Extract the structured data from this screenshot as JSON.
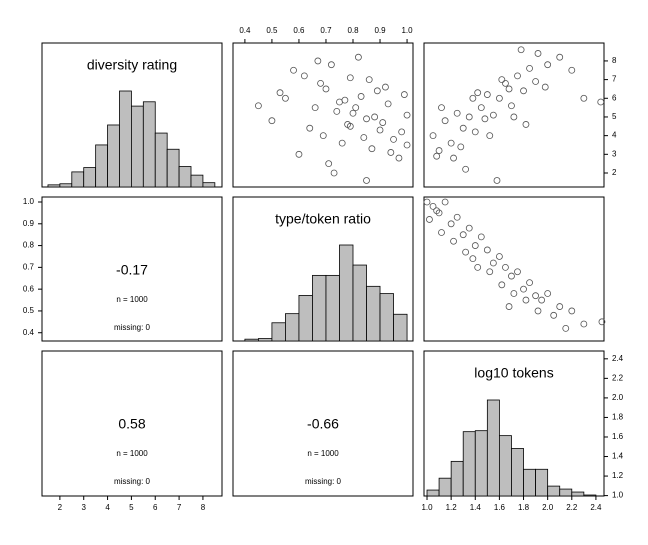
{
  "chart_data": {
    "type": "pairs",
    "variables": [
      {
        "name": "diversity rating",
        "xlim": [
          1.25,
          8.8
        ],
        "ylim": [
          1.25,
          8.96
        ],
        "ticks": [
          2,
          3,
          4,
          5,
          6,
          7,
          8
        ]
      },
      {
        "name": "type/token ratio",
        "xlim": [
          0.356,
          1.022
        ],
        "ylim": [
          0.362,
          1.023
        ],
        "ticks": [
          0.4,
          0.5,
          0.6,
          0.7,
          0.8,
          0.9,
          {
            "value": 1,
            "label": "1.0"
          }
        ]
      },
      {
        "name": "log10 tokens",
        "xlim": [
          0.975,
          2.467
        ],
        "ylim": [
          0.996,
          2.48
        ],
        "ticks": [
          {
            "value": 1,
            "label": "1.0"
          },
          1.2,
          1.4,
          1.6,
          1.8,
          {
            "value": 2,
            "label": "2.0"
          },
          2.2,
          2.4
        ]
      }
    ],
    "histograms": [
      {
        "bins": [
          1.5,
          2,
          2.5,
          3,
          3.5,
          4,
          4.5,
          5,
          5.5,
          6,
          6.5,
          7,
          7.5,
          8,
          8.5
        ],
        "counts": [
          4,
          6,
          28,
          36,
          78,
          115,
          178,
          150,
          158,
          100,
          70,
          38,
          22,
          8
        ]
      },
      {
        "bins": [
          0.4,
          0.45,
          0.5,
          0.55,
          0.6,
          0.65,
          0.7,
          0.75,
          0.8,
          0.85,
          0.9,
          0.95,
          1.0
        ],
        "counts": [
          3,
          4,
          30,
          45,
          75,
          108,
          108,
          158,
          125,
          90,
          78,
          44
        ]
      },
      {
        "bins": [
          1.0,
          1.1,
          1.2,
          1.3,
          1.4,
          1.5,
          1.6,
          1.7,
          1.8,
          1.9,
          2.0,
          2.1,
          2.2,
          2.3,
          2.4
        ],
        "counts": [
          12,
          36,
          70,
          130,
          132,
          194,
          122,
          96,
          54,
          54,
          20,
          14,
          8,
          2
        ]
      }
    ],
    "scatters": [
      {
        "x": [
          0.62,
          0.7,
          0.75,
          0.8,
          0.85,
          0.9,
          0.95,
          1.0,
          0.55,
          0.66,
          0.72,
          0.78,
          0.83,
          0.88,
          0.93,
          0.98,
          0.5,
          0.6,
          0.68,
          0.74,
          0.79,
          0.84,
          0.89,
          0.97,
          0.64,
          0.71,
          0.77,
          0.82,
          0.87,
          0.92,
          1.0,
          0.58,
          0.69,
          0.76,
          0.81,
          0.86,
          0.91,
          0.99,
          0.45,
          0.53,
          0.73,
          0.79,
          0.94,
          0.67,
          0.85
        ],
        "y": [
          7.2,
          6.5,
          5.8,
          5.2,
          4.9,
          4.3,
          3.8,
          3.5,
          6.0,
          5.5,
          7.8,
          4.6,
          6.1,
          5.0,
          5.7,
          4.2,
          4.8,
          3.0,
          6.8,
          5.3,
          7.1,
          3.9,
          6.4,
          2.8,
          4.4,
          2.5,
          5.9,
          8.2,
          3.3,
          6.6,
          5.1,
          7.5,
          4.0,
          3.6,
          5.5,
          7.0,
          4.7,
          6.2,
          5.6,
          6.3,
          2.0,
          4.5,
          3.1,
          8.0,
          1.6
        ]
      },
      {
        "x": [
          1.05,
          1.1,
          1.15,
          1.2,
          1.25,
          1.3,
          1.35,
          1.4,
          1.45,
          1.5,
          1.55,
          1.6,
          1.65,
          1.7,
          1.75,
          1.8,
          1.85,
          1.9,
          2.0,
          2.1,
          1.12,
          1.22,
          1.32,
          1.42,
          1.52,
          1.62,
          1.72,
          1.82,
          1.92,
          2.2,
          1.08,
          1.28,
          1.38,
          1.48,
          1.58,
          1.68,
          1.78,
          1.98,
          2.3,
          2.44
        ],
        "y": [
          4.0,
          3.2,
          4.8,
          3.6,
          5.2,
          4.4,
          5.0,
          4.2,
          5.5,
          6.2,
          5.1,
          6.0,
          6.8,
          5.6,
          7.2,
          6.4,
          7.6,
          6.9,
          7.8,
          8.2,
          5.5,
          2.8,
          2.2,
          6.3,
          4.0,
          7.0,
          5.0,
          4.6,
          8.4,
          7.5,
          2.9,
          3.4,
          6.0,
          4.9,
          1.6,
          6.5,
          8.6,
          6.6,
          6.0,
          5.8
        ]
      },
      {
        "x": [
          1.0,
          1.05,
          1.1,
          1.15,
          1.2,
          1.25,
          1.3,
          1.35,
          1.4,
          1.45,
          1.5,
          1.55,
          1.6,
          1.65,
          1.7,
          1.75,
          1.8,
          1.85,
          1.9,
          1.95,
          2.0,
          2.1,
          2.2,
          2.3,
          2.45,
          1.02,
          1.12,
          1.22,
          1.32,
          1.42,
          1.52,
          1.62,
          1.72,
          1.82,
          1.92,
          2.05,
          2.15,
          1.08,
          1.38,
          1.68
        ],
        "y": [
          1.0,
          0.98,
          0.95,
          1.0,
          0.9,
          0.93,
          0.85,
          0.88,
          0.8,
          0.84,
          0.78,
          0.72,
          0.75,
          0.7,
          0.66,
          0.68,
          0.6,
          0.63,
          0.57,
          0.55,
          0.58,
          0.52,
          0.5,
          0.44,
          0.45,
          0.92,
          0.86,
          0.82,
          0.77,
          0.7,
          0.68,
          0.62,
          0.58,
          0.55,
          0.5,
          0.48,
          0.42,
          0.96,
          0.74,
          0.52
        ]
      }
    ],
    "correlations": [
      {
        "r": -0.17,
        "n": "n = 1000",
        "missing": "missing: 0"
      },
      {
        "r": 0.58,
        "n": "n = 1000",
        "missing": "missing: 0"
      },
      {
        "r": -0.66,
        "n": "n = 1000",
        "missing": "missing: 0"
      }
    ],
    "bar_color": "#bebebe",
    "point_color": "#555555"
  }
}
